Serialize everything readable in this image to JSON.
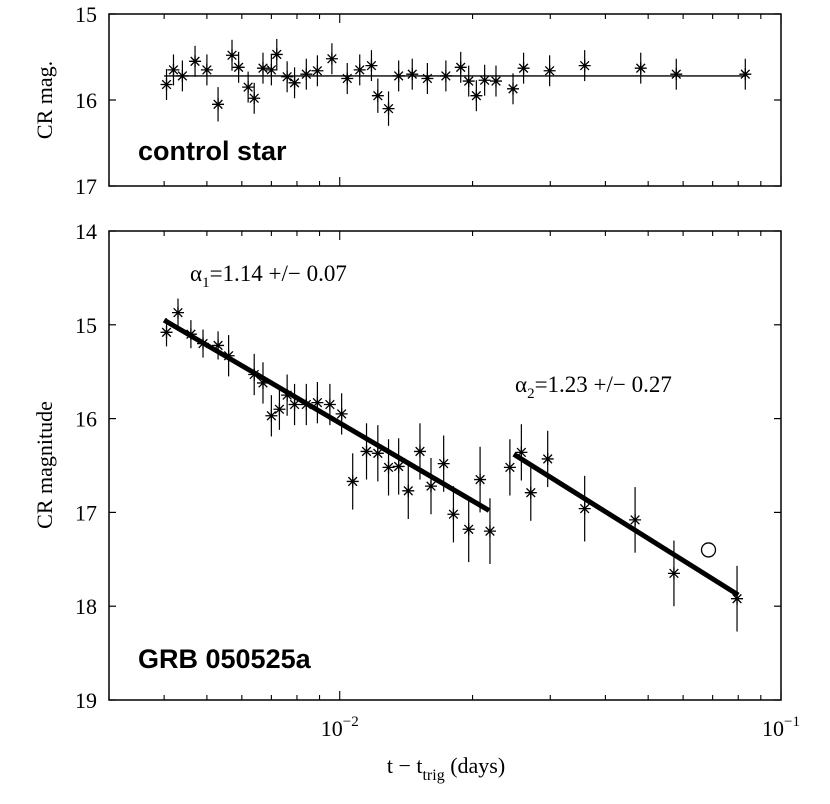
{
  "chart_data": [
    {
      "type": "scatter",
      "panel": "top",
      "ylabel": "CR mag.",
      "ylim": [
        15,
        17
      ],
      "y_reversed": true,
      "xscale": "log",
      "xlim": [
        0.003,
        0.1
      ],
      "yticks": [
        "15",
        "16",
        "17"
      ],
      "panel_label": "control star",
      "series": [
        {
          "name": "control star",
          "marker": "asterisk",
          "x": [
            0.00405,
            0.0042,
            0.0044,
            0.0047,
            0.005,
            0.0053,
            0.0057,
            0.0059,
            0.0062,
            0.0064,
            0.0067,
            0.007,
            0.0072,
            0.0076,
            0.0079,
            0.0084,
            0.0089,
            0.0096,
            0.0104,
            0.0111,
            0.0118,
            0.0122,
            0.0129,
            0.0136,
            0.0146,
            0.0158,
            0.0174,
            0.0188,
            0.0196,
            0.0204,
            0.0213,
            0.0226,
            0.0247,
            0.0261,
            0.0299,
            0.0359,
            0.0481,
            0.0579,
            0.083
          ],
          "y": [
            15.82,
            15.65,
            15.72,
            15.55,
            15.65,
            16.05,
            15.48,
            15.62,
            15.85,
            15.98,
            15.63,
            15.65,
            15.47,
            15.73,
            15.8,
            15.7,
            15.66,
            15.52,
            15.75,
            15.65,
            15.6,
            15.95,
            16.1,
            15.72,
            15.7,
            15.75,
            15.72,
            15.62,
            15.78,
            15.95,
            15.77,
            15.78,
            15.87,
            15.63,
            15.66,
            15.6,
            15.63,
            15.7,
            15.7
          ],
          "yerr": [
            0.18,
            0.18,
            0.18,
            0.18,
            0.18,
            0.2,
            0.18,
            0.18,
            0.18,
            0.18,
            0.18,
            0.18,
            0.18,
            0.18,
            0.18,
            0.18,
            0.18,
            0.18,
            0.18,
            0.18,
            0.18,
            0.2,
            0.2,
            0.18,
            0.18,
            0.18,
            0.18,
            0.18,
            0.18,
            0.18,
            0.18,
            0.18,
            0.18,
            0.18,
            0.18,
            0.18,
            0.18,
            0.18,
            0.18
          ]
        }
      ],
      "reference_line": {
        "y": 15.72,
        "x_range": [
          0.004,
          0.083
        ]
      }
    },
    {
      "type": "scatter",
      "panel": "bottom",
      "ylabel": "CR magnitude",
      "xlabel": "t − t",
      "xlabel_sub": "trig",
      "xlabel_suffix": " (days)",
      "ylim": [
        14,
        19
      ],
      "y_reversed": true,
      "xscale": "log",
      "xlim": [
        0.003,
        0.1
      ],
      "yticks": [
        "14",
        "15",
        "16",
        "17",
        "18",
        "19"
      ],
      "xticks": [
        {
          "value": 0.01,
          "base": "10",
          "exp": "−2"
        },
        {
          "value": 0.1,
          "base": "10",
          "exp": "−1"
        }
      ],
      "panel_label": "GRB 050525a",
      "annotations": [
        {
          "symbol": "α",
          "sub": "1",
          "text": "=1.14 +/− 0.07"
        },
        {
          "symbol": "α",
          "sub": "2",
          "text": "=1.23 +/− 0.27"
        }
      ],
      "series": [
        {
          "name": "GRB 050525a",
          "marker": "asterisk",
          "x": [
            0.00405,
            0.0043,
            0.0046,
            0.0049,
            0.0053,
            0.0056,
            0.0064,
            0.0067,
            0.007,
            0.0073,
            0.0076,
            0.0079,
            0.0084,
            0.0089,
            0.0095,
            0.0101,
            0.0107,
            0.0115,
            0.0122,
            0.0129,
            0.0136,
            0.0143,
            0.0152,
            0.0161,
            0.0172,
            0.0181,
            0.0196,
            0.0208,
            0.0219,
            0.0243,
            0.0258,
            0.0271,
            0.0296,
            0.0359,
            0.0467,
            0.0572,
            0.0795
          ],
          "y": [
            15.08,
            14.87,
            15.1,
            15.2,
            15.22,
            15.33,
            15.53,
            15.62,
            15.97,
            15.9,
            15.75,
            15.85,
            15.85,
            15.83,
            15.85,
            15.95,
            16.67,
            16.35,
            16.37,
            16.52,
            16.51,
            16.77,
            16.35,
            16.72,
            16.48,
            17.02,
            17.18,
            16.65,
            17.2,
            16.52,
            16.36,
            16.79,
            16.43,
            16.96,
            17.08,
            17.65,
            17.92
          ],
          "yerr": [
            0.15,
            0.15,
            0.15,
            0.15,
            0.15,
            0.22,
            0.22,
            0.22,
            0.22,
            0.22,
            0.22,
            0.22,
            0.22,
            0.22,
            0.22,
            0.22,
            0.3,
            0.3,
            0.3,
            0.3,
            0.3,
            0.3,
            0.3,
            0.3,
            0.3,
            0.3,
            0.35,
            0.35,
            0.35,
            0.3,
            0.3,
            0.3,
            0.3,
            0.35,
            0.35,
            0.35,
            0.35
          ]
        }
      ],
      "outliers": [
        {
          "marker": "circle",
          "x": 0.0685,
          "y": 17.4
        }
      ],
      "fits": [
        {
          "name": "α1 fit",
          "x": [
            0.004,
            0.0218
          ],
          "y": [
            14.95,
            16.98
          ]
        },
        {
          "name": "α2 fit",
          "x": [
            0.0248,
            0.08
          ],
          "y": [
            16.38,
            17.88
          ]
        }
      ]
    }
  ]
}
